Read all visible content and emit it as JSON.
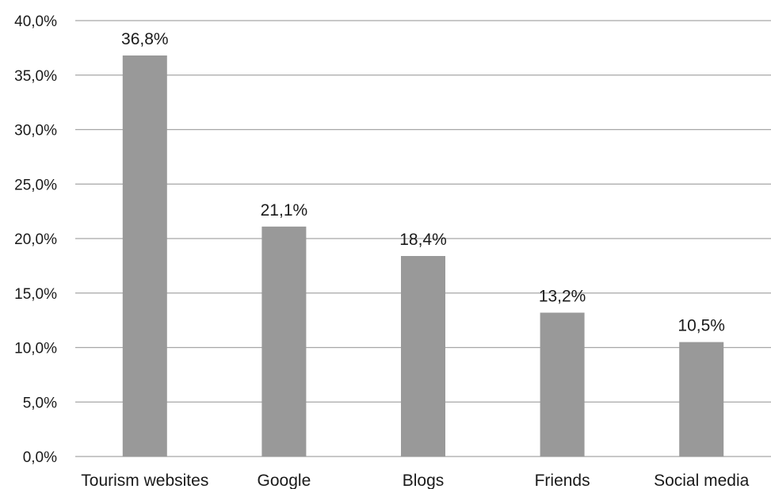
{
  "chart_data": {
    "type": "bar",
    "title": "",
    "xlabel": "",
    "ylabel": "",
    "categories": [
      "Tourism websites",
      "Google",
      "Blogs",
      "Friends",
      "Social media"
    ],
    "values": [
      36.8,
      21.1,
      18.4,
      13.2,
      10.5
    ],
    "data_labels": [
      "36,8%",
      "21,1%",
      "18,4%",
      "13,2%",
      "10,5%"
    ],
    "ylim": [
      0,
      40
    ],
    "yticks": [
      0,
      5,
      10,
      15,
      20,
      25,
      30,
      35,
      40
    ],
    "ytick_labels": [
      "0,0%",
      "5,0%",
      "10,0%",
      "15,0%",
      "20,0%",
      "25,0%",
      "30,0%",
      "35,0%",
      "40,0%"
    ],
    "grid": true,
    "legend": "none",
    "colors": {
      "bar": "#999999",
      "grid": "#a6a6a6",
      "text": "#1a1a1a"
    }
  }
}
